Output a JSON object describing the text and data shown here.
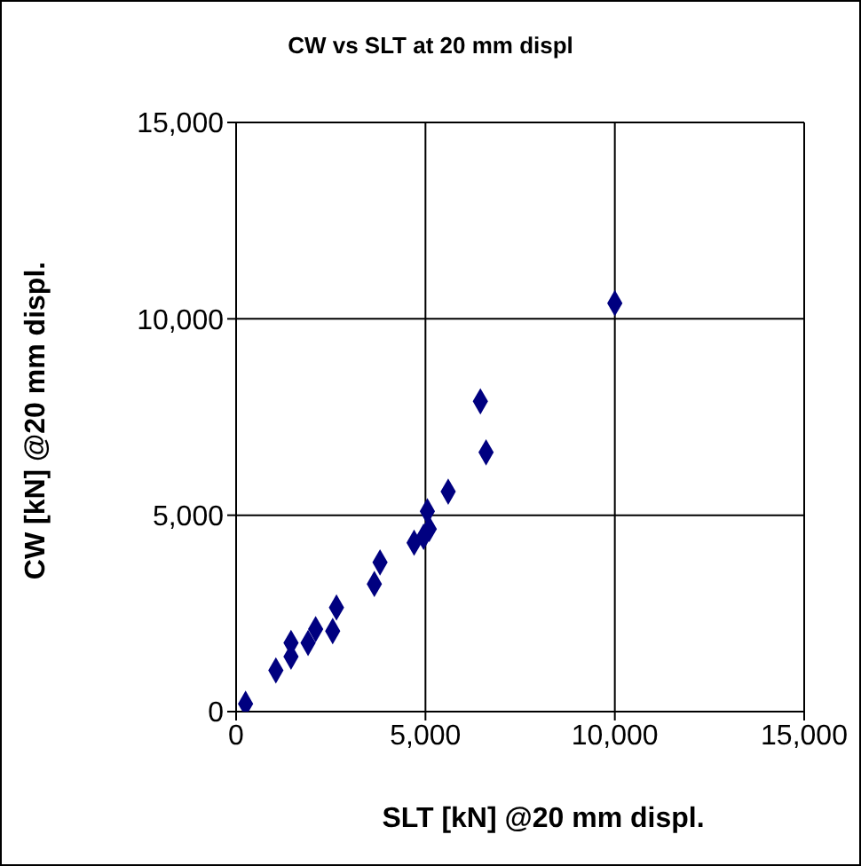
{
  "chart_data": {
    "type": "scatter",
    "title": "CW vs SLT at 20 mm displ",
    "xlabel": "SLT [kN] @20 mm displ.",
    "ylabel": "CW [kN] @20 mm displ.",
    "x": [
      250,
      1050,
      1450,
      1450,
      1900,
      2100,
      2550,
      2650,
      3650,
      3800,
      4700,
      4950,
      5100,
      5050,
      5600,
      6600,
      6450,
      10000
    ],
    "series": [
      {
        "color": "#000080",
        "values": [
          200,
          1050,
          1400,
          1750,
          1750,
          2100,
          2050,
          2650,
          3250,
          3800,
          4300,
          4450,
          4650,
          5100,
          5600,
          6600,
          7900,
          10400
        ]
      }
    ],
    "xlim": [
      0,
      15000
    ],
    "ylim": [
      0,
      15000
    ],
    "xticks": [
      {
        "value": 0,
        "label": "0"
      },
      {
        "value": 5000,
        "label": "5,000"
      },
      {
        "value": 10000,
        "label": "10,000"
      },
      {
        "value": 15000,
        "label": "15,000"
      }
    ],
    "yticks": [
      {
        "value": 0,
        "label": "0"
      },
      {
        "value": 5000,
        "label": "5,000"
      },
      {
        "value": 10000,
        "label": "10,000"
      },
      {
        "value": 15000,
        "label": "15,000"
      }
    ],
    "grid": true,
    "marker": "diamond",
    "legend": false
  }
}
